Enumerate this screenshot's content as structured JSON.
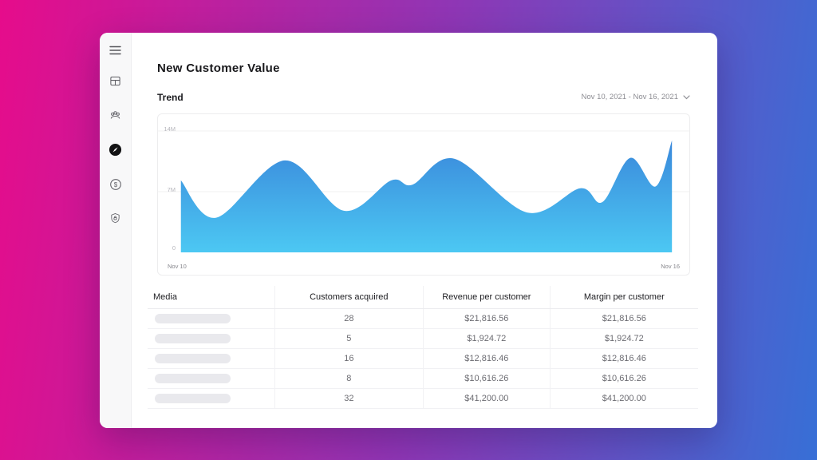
{
  "app": {
    "background_gradient": [
      "#e60c8b",
      "#8f36b5",
      "#376fd6"
    ]
  },
  "sidebar": {
    "items": [
      {
        "label": "menu",
        "icon": "menu-icon"
      },
      {
        "label": "dashboard",
        "icon": "dashboard-icon"
      },
      {
        "label": "team",
        "icon": "team-icon"
      },
      {
        "label": "insights",
        "icon": "compass-icon",
        "active": true
      },
      {
        "label": "revenue",
        "icon": "currency-sync-icon"
      },
      {
        "label": "security",
        "icon": "shield-lock-icon"
      }
    ]
  },
  "header": {
    "title": "New Customer Value"
  },
  "trend": {
    "section_label": "Trend",
    "date_range": "Nov 10, 2021 - Nov 16, 2021"
  },
  "chart_data": {
    "type": "area",
    "title": "Trend",
    "legend": "none",
    "grid": "horizontal",
    "x_axis": {
      "start_label": "Nov 10",
      "end_label": "Nov 16",
      "unit": "day"
    },
    "y_axis": {
      "ticks": [
        "14M",
        "7M",
        "0"
      ],
      "lim_millions": [
        0,
        14
      ]
    },
    "fill_gradient_top": "#3a88db",
    "fill_gradient_bottom": "#4cc8f3",
    "points": [
      {
        "day": 0.0,
        "value_millions": 8.3
      },
      {
        "day": 0.43,
        "value_millions": 4.0
      },
      {
        "day": 1.27,
        "value_millions": 10.6
      },
      {
        "day": 1.99,
        "value_millions": 4.8
      },
      {
        "day": 2.57,
        "value_millions": 8.3
      },
      {
        "day": 2.83,
        "value_millions": 7.8
      },
      {
        "day": 3.34,
        "value_millions": 10.8
      },
      {
        "day": 4.23,
        "value_millions": 4.6
      },
      {
        "day": 4.88,
        "value_millions": 7.4
      },
      {
        "day": 5.15,
        "value_millions": 5.8
      },
      {
        "day": 5.49,
        "value_millions": 10.9
      },
      {
        "day": 5.8,
        "value_millions": 7.6
      },
      {
        "day": 6.0,
        "value_millions": 12.9
      }
    ]
  },
  "table": {
    "columns": [
      "Media",
      "Customers acquired",
      "Revenue per customer",
      "Margin per customer"
    ],
    "rows": [
      {
        "customers_acquired": "28",
        "revenue_per_customer": "$21,816.56",
        "margin_per_customer": "$21,816.56"
      },
      {
        "customers_acquired": "5",
        "revenue_per_customer": "$1,924.72",
        "margin_per_customer": "$1,924.72"
      },
      {
        "customers_acquired": "16",
        "revenue_per_customer": "$12,816.46",
        "margin_per_customer": "$12,816.46"
      },
      {
        "customers_acquired": "8",
        "revenue_per_customer": "$10,616.26",
        "margin_per_customer": "$10,616.26"
      },
      {
        "customers_acquired": "32",
        "revenue_per_customer": "$41,200.00",
        "margin_per_customer": "$41,200.00"
      }
    ]
  }
}
